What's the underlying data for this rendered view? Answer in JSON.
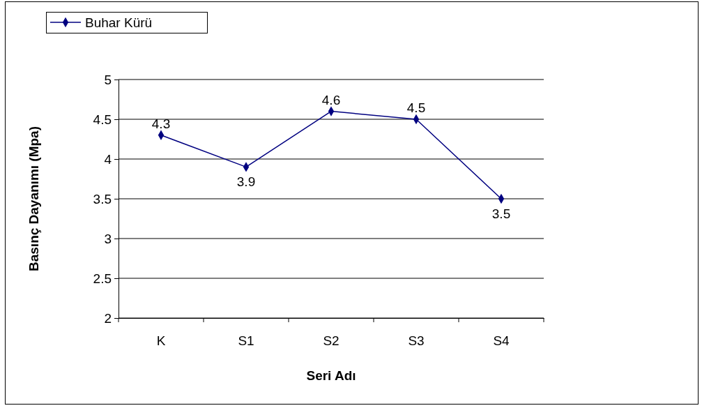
{
  "chart_data": {
    "type": "line",
    "xlabel": "Seri Adı",
    "ylabel": "Basınç Dayanımı (Mpa)",
    "categories": [
      "K",
      "S1",
      "S2",
      "S3",
      "S4"
    ],
    "series": [
      {
        "name": "Buhar Kürü",
        "color": "#000080",
        "values": [
          4.3,
          3.9,
          4.6,
          4.5,
          3.5
        ]
      }
    ],
    "ylim": [
      2,
      5
    ],
    "yticks": [
      2,
      2.5,
      3,
      3.5,
      4,
      4.5,
      5
    ],
    "grid": "y",
    "legend": "top left",
    "marker": "diamond",
    "line_style": "solid",
    "data_labels": true
  }
}
